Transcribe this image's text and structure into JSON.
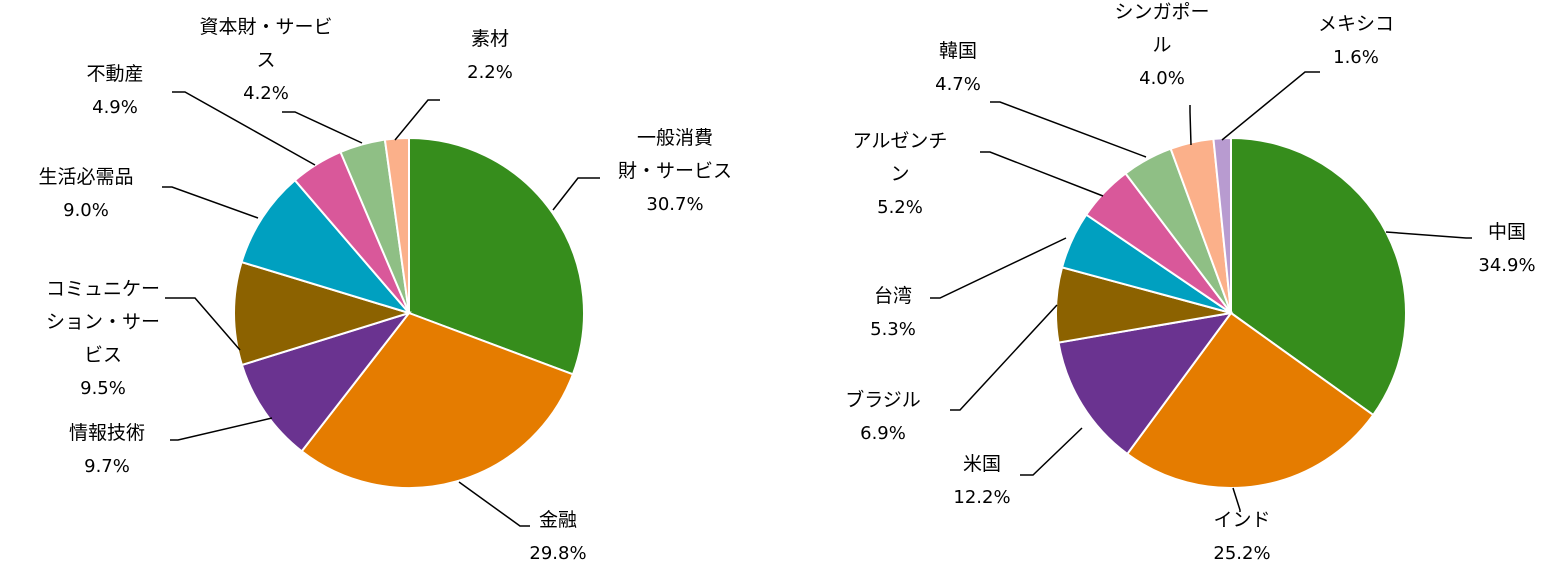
{
  "chart_data": [
    {
      "type": "pie",
      "slices": [
        {
          "label": "一般消費財・サービス",
          "label_lines": [
            "一般消費",
            "財・サービス"
          ],
          "value_text": "30.7%",
          "value": 30.7,
          "color": "#368D1C"
        },
        {
          "label": "金融",
          "label_lines": [
            "金融"
          ],
          "value_text": "29.8%",
          "value": 29.8,
          "color": "#E57C00"
        },
        {
          "label": "情報技術",
          "label_lines": [
            "情報技術"
          ],
          "value_text": "9.7%",
          "value": 9.7,
          "color": "#6A3390"
        },
        {
          "label": "コミュニケーション・サービス",
          "label_lines": [
            "コミュニケー",
            "ション・サー",
            "ビス"
          ],
          "value_text": "9.5%",
          "value": 9.5,
          "color": "#8C6200"
        },
        {
          "label": "生活必需品",
          "label_lines": [
            "生活必需品"
          ],
          "value_text": "9.0%",
          "value": 9.0,
          "color": "#00A0C0"
        },
        {
          "label": "不動産",
          "label_lines": [
            "不動産"
          ],
          "value_text": "4.9%",
          "value": 4.9,
          "color": "#D9589A"
        },
        {
          "label": "資本財・サービス",
          "label_lines": [
            "資本財・サービ",
            "ス"
          ],
          "value_text": "4.2%",
          "value": 4.2,
          "color": "#8FBF85"
        },
        {
          "label": "素材",
          "label_lines": [
            "素材"
          ],
          "value_text": "2.2%",
          "value": 2.2,
          "color": "#FBB08A"
        }
      ]
    },
    {
      "type": "pie",
      "slices": [
        {
          "label": "中国",
          "label_lines": [
            "中国"
          ],
          "value_text": "34.9%",
          "value": 34.9,
          "color": "#368D1C"
        },
        {
          "label": "インド",
          "label_lines": [
            "インド"
          ],
          "value_text": "25.2%",
          "value": 25.2,
          "color": "#E57C00"
        },
        {
          "label": "米国",
          "label_lines": [
            "米国"
          ],
          "value_text": "12.2%",
          "value": 12.2,
          "color": "#6A3390"
        },
        {
          "label": "ブラジル",
          "label_lines": [
            "ブラジル"
          ],
          "value_text": "6.9%",
          "value": 6.9,
          "color": "#8C6200"
        },
        {
          "label": "台湾",
          "label_lines": [
            "台湾"
          ],
          "value_text": "5.3%",
          "value": 5.3,
          "color": "#00A0C0"
        },
        {
          "label": "アルゼンチン",
          "label_lines": [
            "アルゼンチ",
            "ン"
          ],
          "value_text": "5.2%",
          "value": 5.2,
          "color": "#D9589A"
        },
        {
          "label": "韓国",
          "label_lines": [
            "韓国"
          ],
          "value_text": "4.7%",
          "value": 4.7,
          "color": "#8FBF85"
        },
        {
          "label": "シンガポール",
          "label_lines": [
            "シンガポー",
            "ル"
          ],
          "value_text": "4.0%",
          "value": 4.0,
          "color": "#FBB08A"
        },
        {
          "label": "メキシコ",
          "label_lines": [
            "メキシコ"
          ],
          "value_text": "1.6%",
          "value": 1.6,
          "color": "#B89BD0"
        }
      ]
    }
  ]
}
